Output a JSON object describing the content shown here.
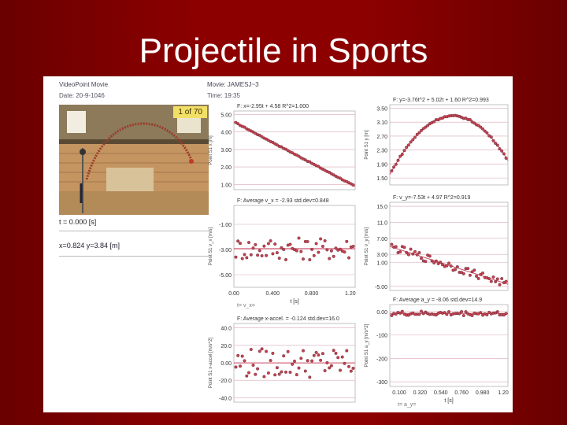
{
  "slide": {
    "title": "Projectile in Sports"
  },
  "video": {
    "app_title": "VideoPoint Movie",
    "date": "Date: 20-9-1046",
    "frame_counter": "1 of 70",
    "time_readout": "t = 0.000 [s]",
    "coords_readout": "x=0.824  y=3.84 [m]"
  },
  "movie": {
    "title": "Movie: JAMESJ~3",
    "time": "Time: 19:35"
  },
  "colors": {
    "background": "#8c0000",
    "data_points": "#c4434f",
    "fit_line": "#cc4a64",
    "grid": "#d9a9b4"
  },
  "chart_data": [
    {
      "id": "x-vs-t",
      "type": "scatter",
      "fit_label": "F: x=-2.95t + 4.58  R^2=1.000",
      "ylabel": "Point S1 x [m]",
      "yticks": [
        "5.00",
        "4.00",
        "3.00",
        "2.00",
        "1.00"
      ],
      "ylim": [
        0.7,
        5.2
      ],
      "xlim": [
        0,
        1.25
      ],
      "series": [
        {
          "fit": {
            "m": -2.95,
            "b": 4.58
          },
          "noise": 0.02
        }
      ]
    },
    {
      "id": "vx-vs-t",
      "type": "scatter",
      "fit_label": "F: Average v_x = -2.93  std.dev=0.848",
      "ylabel": "Point S1 v_x [m/s]",
      "yticks": [
        "-1.00",
        "-3.00",
        "-5.00"
      ],
      "ylim": [
        -6,
        0.5
      ],
      "xlim": [
        0,
        1.25
      ],
      "xticks": [
        "0.00",
        "0.400",
        "0.800",
        "1.20"
      ],
      "xlabel": "t [s]",
      "series": [
        {
          "fit": {
            "m": 0,
            "b": -2.93
          },
          "noise": 0.9
        }
      ]
    },
    {
      "id": "ax-vs-t",
      "type": "scatter",
      "fit_label": "F: Average x-accel. = -0.124  std.dev=16.0",
      "ylabel": "Point S1 x-accel [m/s^2]",
      "yticks": [
        "40.0",
        "20.0",
        "0.00",
        "-20.0",
        "-40.0"
      ],
      "ylim": [
        -45,
        45
      ],
      "xlim": [
        0,
        1.25
      ],
      "series": [
        {
          "fit": {
            "m": 0,
            "b": -0.124
          },
          "noise": 17
        }
      ]
    },
    {
      "id": "y-vs-t",
      "type": "scatter",
      "fit_label": "F: y=-3.76t^2 + 5.02t + 1.60  R^2=0.993",
      "ylabel": "Point S1 y [m]",
      "yticks": [
        "3.50",
        "3.10",
        "2.70",
        "2.30",
        "1.90",
        "1.50"
      ],
      "ylim": [
        1.3,
        3.6
      ],
      "xlim": [
        0,
        1.25
      ],
      "series": [
        {
          "fit": {
            "a": -3.76,
            "b": 5.02,
            "c": 1.6
          },
          "noise": 0.02
        }
      ]
    },
    {
      "id": "vy-vs-t",
      "type": "scatter",
      "fit_label": "F: v_y=-7.53t + 4.97  R^2=0.919",
      "ylabel": "Point S1 v_y [m/s]",
      "yticks": [
        "15.0",
        "11.0",
        "7.00",
        "3.00",
        "1.00",
        "-5.00"
      ],
      "ylim": [
        -6,
        16
      ],
      "xlim": [
        0,
        1.25
      ],
      "series": [
        {
          "fit": {
            "m": -7.53,
            "b": 4.97
          },
          "noise": 1.0
        }
      ]
    },
    {
      "id": "ay-vs-t",
      "type": "scatter",
      "fit_label": "F: Average a_y = -8.06  std.dev=14.9",
      "ylabel": "Point S1 a_y [m/s^2]",
      "yticks": [
        "0.00",
        "-100",
        "-200",
        "-300"
      ],
      "ylim": [
        -320,
        30
      ],
      "xlim": [
        0,
        1.25
      ],
      "xticks": [
        "0.100",
        "0.320",
        "0.540",
        "0.760",
        "0.980",
        "1.20"
      ],
      "xlabel": "t [s]",
      "series": [
        {
          "fit": {
            "m": 0,
            "b": -8.06
          },
          "noise": 10
        }
      ]
    }
  ],
  "footers": {
    "left": "t=          v_x=",
    "right": "t=          a_y="
  }
}
